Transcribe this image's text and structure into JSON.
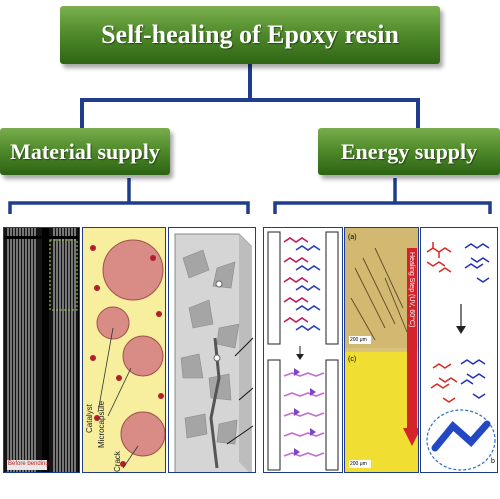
{
  "title": "Self-healing of  Epoxy resin",
  "branches": {
    "material": "Material supply",
    "energy": "Energy supply"
  },
  "panel_labels": {
    "bending": "Before bending",
    "catalyst": "Catalyst",
    "microcapsule": "Microcapsule",
    "crack": "Crack",
    "a": "(a)",
    "c": "(c)",
    "b": "b",
    "scale_a": "200 μm",
    "scale_c": "200 μm",
    "healing_step": "Healing Step (UV, 60°C)"
  },
  "colors": {
    "box_green": "#4f8a2a",
    "connector_blue": "#1f3d8a",
    "capsule": "#d98b86",
    "catalyst": "#b21e2a",
    "panel_yellow": "#f7ef9e",
    "healing_arrow": "#d4232b"
  }
}
